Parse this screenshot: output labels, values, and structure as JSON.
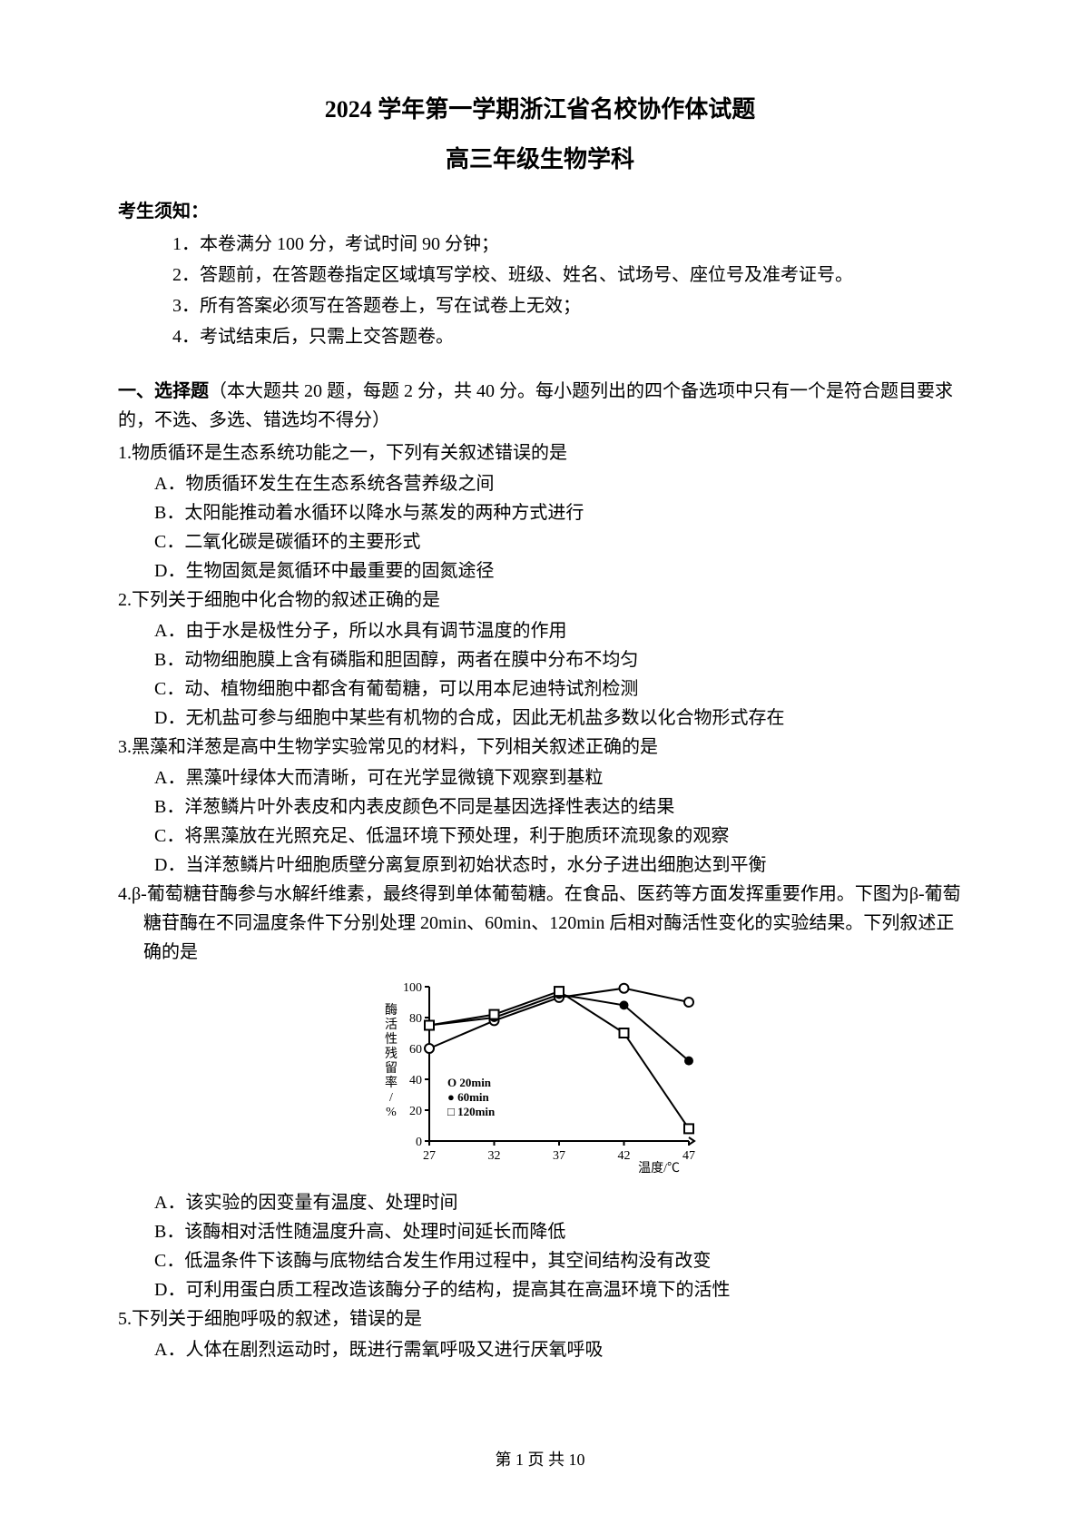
{
  "title_line1": "2024 学年第一学期浙江省名校协作体试题",
  "title_line2": "高三年级生物学科",
  "notice_header": "考生须知：",
  "notices": [
    "1．本卷满分 100 分，考试时间 90 分钟；",
    "2．答题前，在答题卷指定区域填写学校、班级、姓名、试场号、座位号及准考证号。",
    "3．所有答案必须写在答题卷上，写在试卷上无效；",
    "4．考试结束后，只需上交答题卷。"
  ],
  "section_header_prefix": "一、选择题",
  "section_header_rest": "（本大题共 20 题，每题 2 分，共 40 分。每小题列出的四个备选项中只有一个是符合题目要求的，不选、多选、错选均不得分）",
  "q1": {
    "stem": "1.物质循环是生态系统功能之一，下列有关叙述错误的是",
    "A": "A．物质循环发生在生态系统各营养级之间",
    "B": "B．太阳能推动着水循环以降水与蒸发的两种方式进行",
    "C": "C．二氧化碳是碳循环的主要形式",
    "D": "D．生物固氮是氮循环中最重要的固氮途径"
  },
  "q2": {
    "stem": "2.下列关于细胞中化合物的叙述正确的是",
    "A": "A．由于水是极性分子，所以水具有调节温度的作用",
    "B": "B．动物细胞膜上含有磷脂和胆固醇，两者在膜中分布不均匀",
    "C": "C．动、植物细胞中都含有葡萄糖，可以用本尼迪特试剂检测",
    "D": "D．无机盐可参与细胞中某些有机物的合成，因此无机盐多数以化合物形式存在"
  },
  "q3": {
    "stem": "3.黑藻和洋葱是高中生物学实验常见的材料，下列相关叙述正确的是",
    "A": "A．黑藻叶绿体大而清晰，可在光学显微镜下观察到基粒",
    "B": "B．洋葱鳞片叶外表皮和内表皮颜色不同是基因选择性表达的结果",
    "C": "C．将黑藻放在光照充足、低温环境下预处理，利于胞质环流现象的观察",
    "D": "D．当洋葱鳞片叶细胞质壁分离复原到初始状态时，水分子进出细胞达到平衡"
  },
  "q4": {
    "stem": "4.β-葡萄糖苷酶参与水解纤维素，最终得到单体葡萄糖。在食品、医药等方面发挥重要作用。下图为β-葡萄糖苷酶在不同温度条件下分别处理 20min、60min、120min 后相对酶活性变化的实验结果。下列叙述正确的是",
    "A": "A．该实验的因变量有温度、处理时间",
    "B": "B．该酶相对活性随温度升高、处理时间延长而降低",
    "C": "C．低温条件下该酶与底物结合发生作用过程中，其空间结构没有改变",
    "D": "D．可利用蛋白质工程改造该酶分子的结构，提高其在高温环境下的活性"
  },
  "q5": {
    "stem": "5.下列关于细胞呼吸的叙述，错误的是",
    "A": "A．人体在剧烈运动时，既进行需氧呼吸又进行厌氧呼吸"
  },
  "footer": "第 1 页 共 10",
  "chart": {
    "type": "line",
    "x_ticks": [
      27,
      32,
      37,
      42,
      47
    ],
    "y_ticks": [
      0,
      20,
      40,
      60,
      80,
      100
    ],
    "x_label": "温度/℃",
    "y_label": "酶活性残留率/%",
    "series": [
      {
        "name": "20min",
        "marker": "circle-open",
        "values": [
          60,
          78,
          93,
          99,
          90
        ]
      },
      {
        "name": "60min",
        "marker": "circle-filled",
        "values": [
          75,
          80,
          95,
          88,
          52
        ]
      },
      {
        "name": "120min",
        "marker": "square-open",
        "values": [
          75,
          82,
          97,
          70,
          8
        ]
      }
    ],
    "legend_labels": [
      "O 20min",
      "● 60min",
      "□ 120min"
    ],
    "axis_color": "#000000",
    "line_color": "#000000",
    "background": "#ffffff",
    "line_width": 2,
    "marker_size": 5,
    "font_size": 14
  }
}
